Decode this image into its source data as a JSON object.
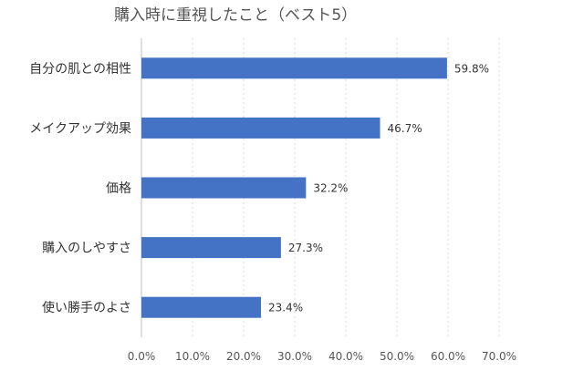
{
  "chart_data": {
    "type": "bar",
    "orientation": "horizontal",
    "title": "購入時に重視したこと（ベスト5）",
    "categories": [
      "自分の肌との相性",
      "メイクアップ効果",
      "価格",
      "購入のしやすさ",
      "使い勝手のよさ"
    ],
    "values": [
      59.8,
      46.7,
      32.2,
      27.3,
      23.4
    ],
    "value_labels": [
      "59.8%",
      "46.7%",
      "32.2%",
      "27.3%",
      "23.4%"
    ],
    "xticks": [
      0,
      10,
      20,
      30,
      40,
      50,
      60,
      70
    ],
    "xtick_labels": [
      "0.0%",
      "10.0%",
      "20.0%",
      "30.0%",
      "40.0%",
      "50.0%",
      "60.0%",
      "70.0%"
    ],
    "xlim": [
      0,
      70
    ],
    "xlabel": "",
    "ylabel": "",
    "grid": true,
    "legend": "none",
    "bar_color": "#4472c4"
  }
}
